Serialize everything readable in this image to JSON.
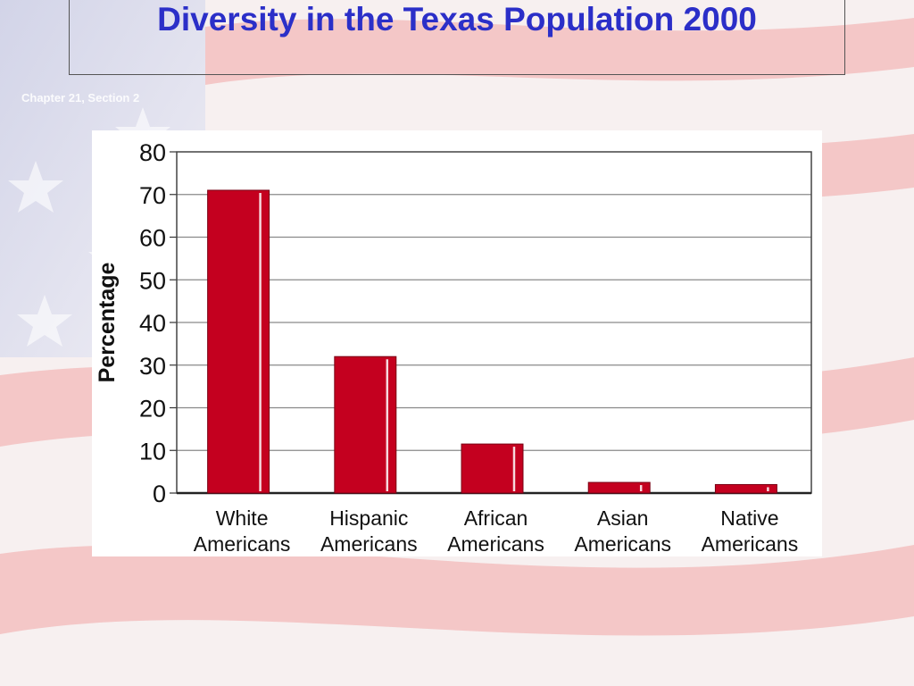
{
  "slide": {
    "title": "Diversity in the Texas Population 2000",
    "subtitle": "Chapter 21, Section 2"
  },
  "colors": {
    "title": "#2b2fc8",
    "bar_fill": "#c4001f",
    "bar_stroke": "#7a0014",
    "grid": "#8a8a8a"
  },
  "chart_data": {
    "type": "bar",
    "categories": [
      [
        "White",
        "Americans"
      ],
      [
        "Hispanic",
        "Americans"
      ],
      [
        "African",
        "Americans"
      ],
      [
        "Asian",
        "Americans"
      ],
      [
        "Native",
        "Americans"
      ]
    ],
    "values": [
      71,
      32,
      11.5,
      2.5,
      2
    ],
    "ylabel": "Percentage",
    "ylim": [
      0,
      80
    ],
    "yticks": [
      0,
      10,
      20,
      30,
      40,
      50,
      60,
      70,
      80
    ],
    "grid": true
  }
}
